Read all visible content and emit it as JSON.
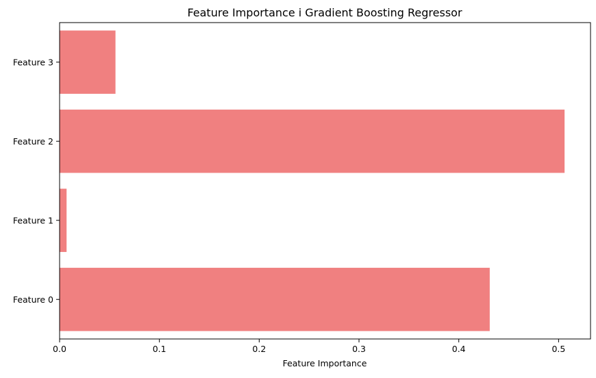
{
  "chart_data": {
    "type": "bar",
    "orientation": "horizontal",
    "title": "Feature Importance i Gradient Boosting Regressor",
    "xlabel": "Feature Importance",
    "ylabel": "",
    "categories": [
      "Feature 0",
      "Feature 1",
      "Feature 2",
      "Feature 3"
    ],
    "values": [
      0.431,
      0.007,
      0.506,
      0.056
    ],
    "xlim": [
      0,
      0.532
    ],
    "xticks": [
      0.0,
      0.1,
      0.2,
      0.3,
      0.4,
      0.5
    ],
    "xtick_labels": [
      "0.0",
      "0.1",
      "0.2",
      "0.3",
      "0.4",
      "0.5"
    ],
    "grid": false,
    "bar_color": "#f08080",
    "axis_color": "#000000"
  }
}
